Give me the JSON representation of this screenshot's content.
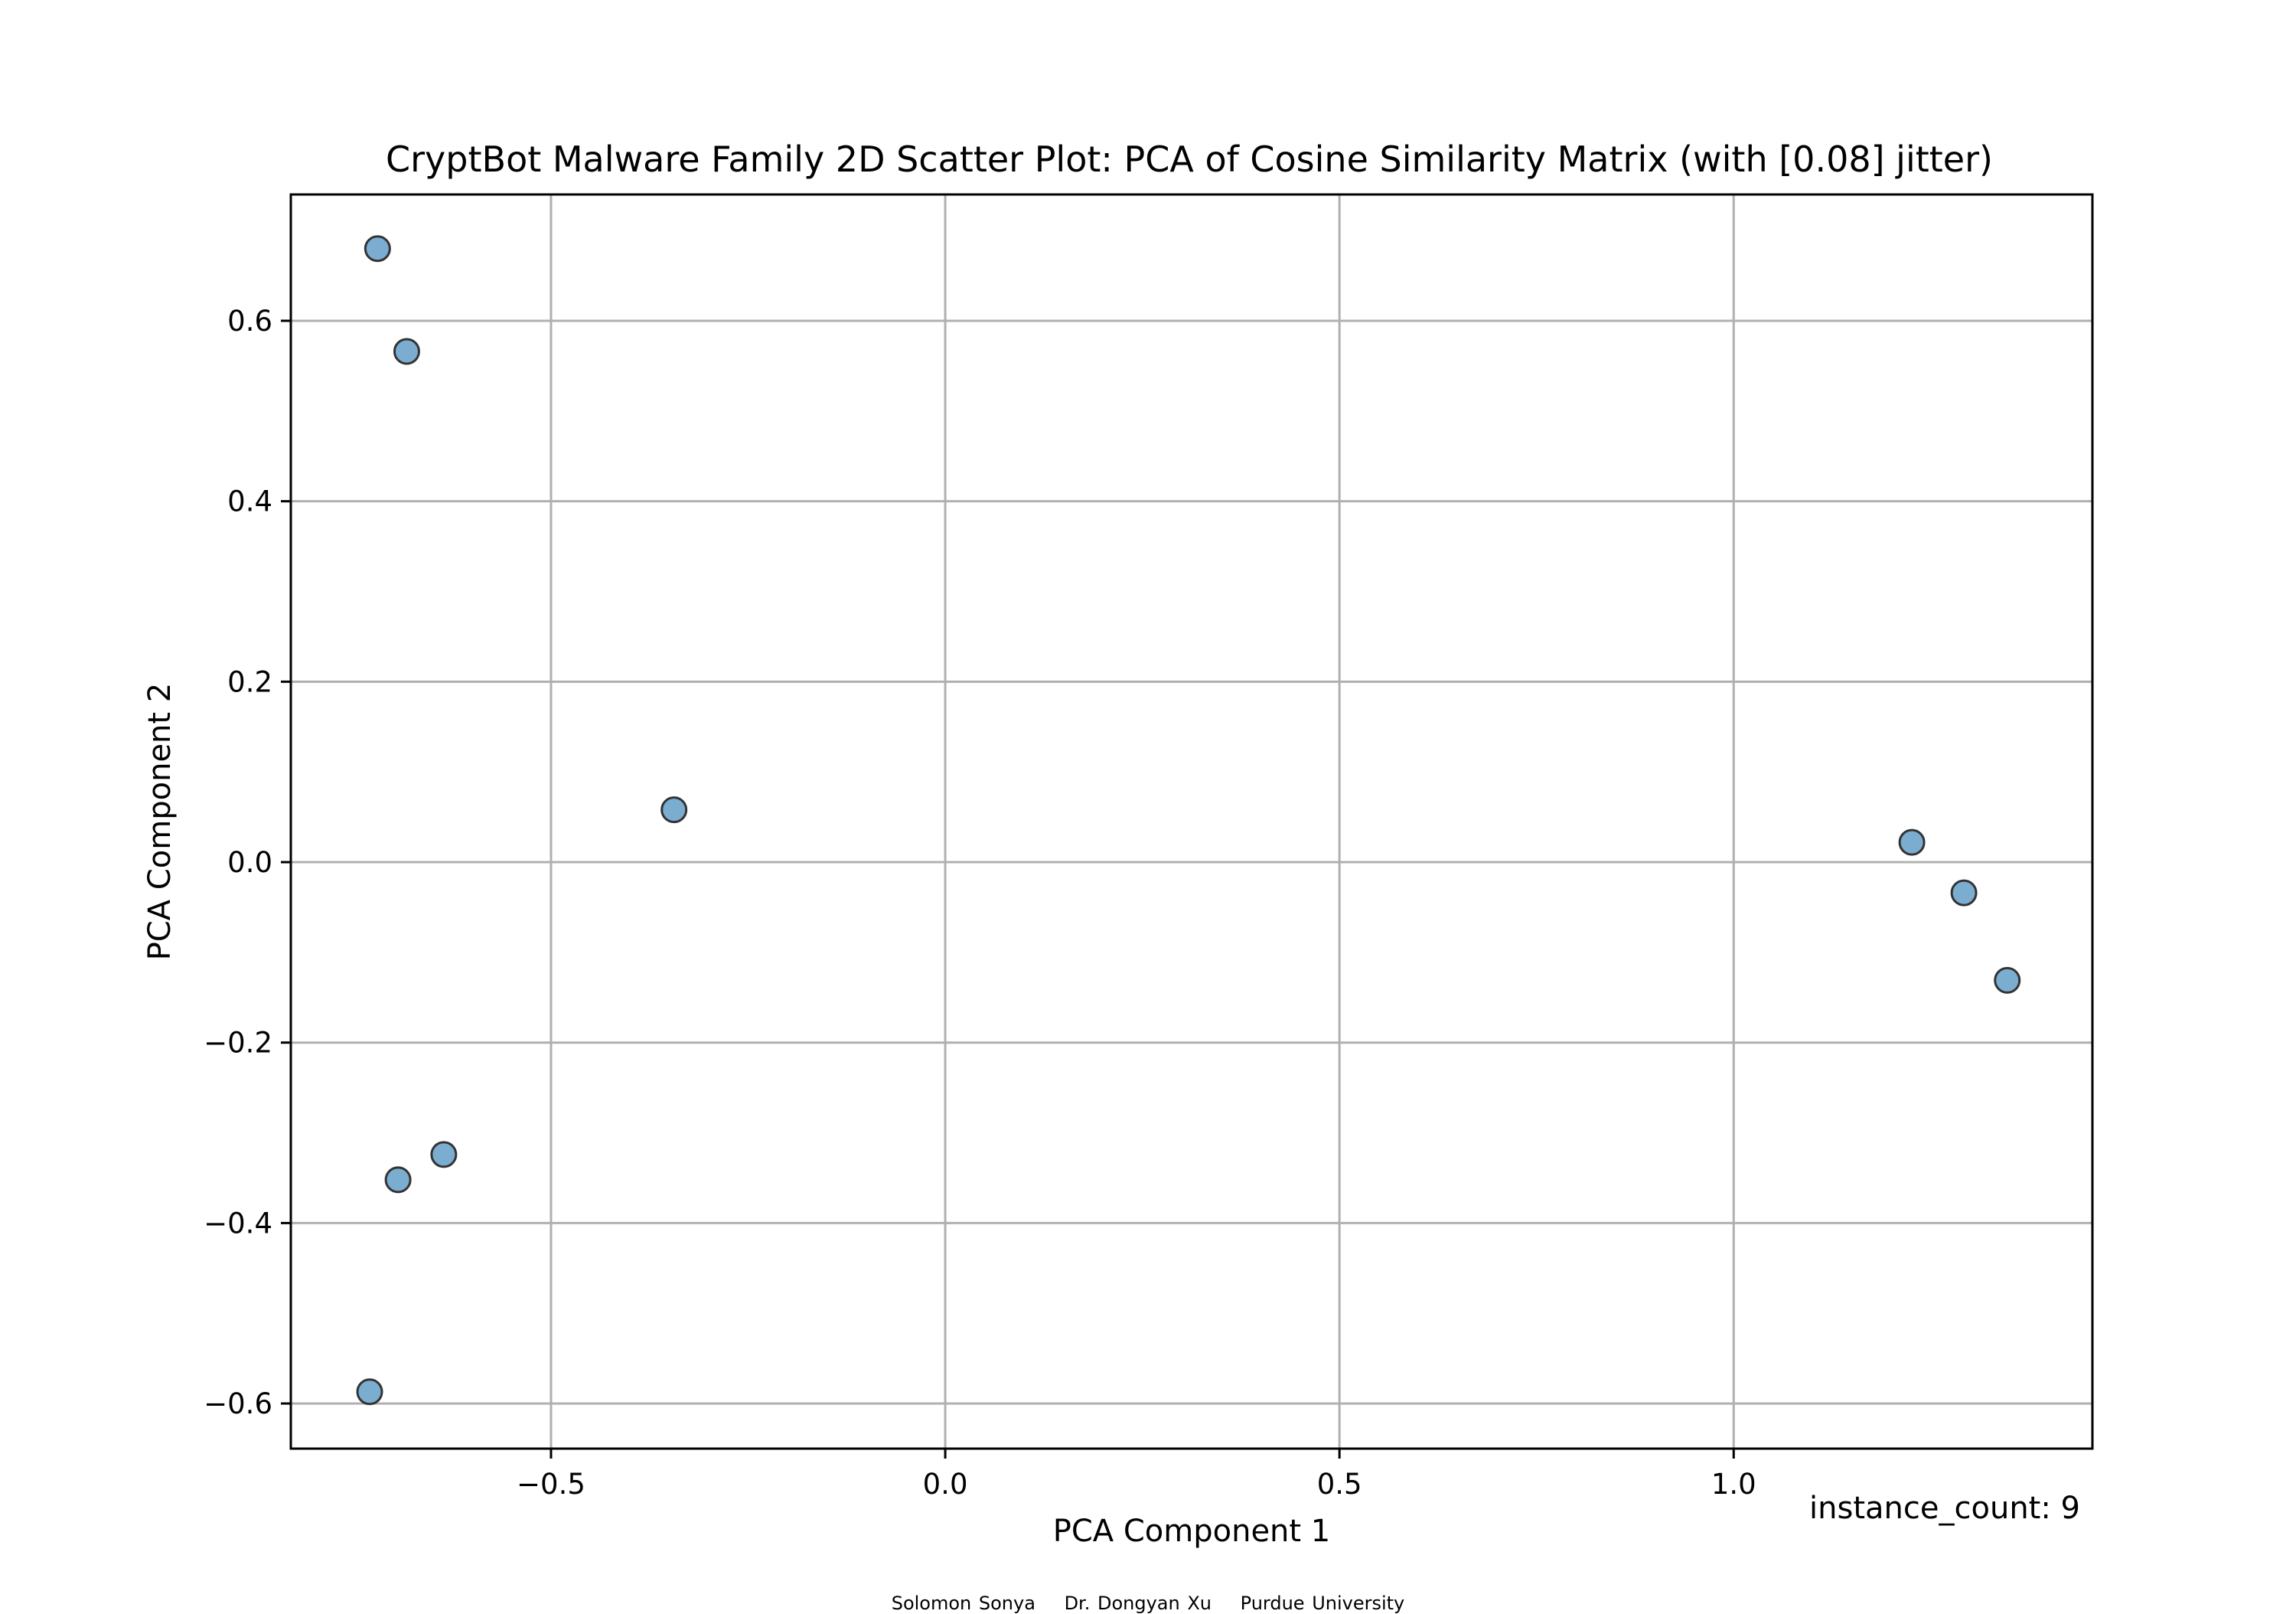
{
  "chart_data": {
    "type": "scatter",
    "title": "CryptBot Malware Family 2D Scatter Plot: PCA of Cosine Similarity Matrix (with [0.08] jitter)",
    "xlabel": "PCA Component 1",
    "ylabel": "PCA Component 2",
    "xlim": [
      -0.83,
      1.455
    ],
    "ylim": [
      -0.65,
      0.74
    ],
    "xticks": [
      -0.5,
      0.0,
      0.5,
      1.0
    ],
    "xtick_labels": [
      "−0.5",
      "0.0",
      "0.5",
      "1.0"
    ],
    "yticks": [
      -0.6,
      -0.4,
      -0.2,
      0.0,
      0.2,
      0.4,
      0.6
    ],
    "ytick_labels": [
      "−0.6",
      "−0.4",
      "−0.2",
      "0.0",
      "0.2",
      "0.4",
      "0.6"
    ],
    "grid": true,
    "marker_color": "#74a9cf",
    "marker_edge_color": "#333333",
    "points": [
      {
        "x": -0.72,
        "y": 0.68
      },
      {
        "x": -0.683,
        "y": 0.566
      },
      {
        "x": -0.344,
        "y": 0.058
      },
      {
        "x": -0.636,
        "y": -0.324
      },
      {
        "x": -0.694,
        "y": -0.352
      },
      {
        "x": -0.73,
        "y": -0.587
      },
      {
        "x": 1.226,
        "y": 0.022
      },
      {
        "x": 1.292,
        "y": -0.034
      },
      {
        "x": 1.347,
        "y": -0.131
      }
    ]
  },
  "annotation": "instance_count: 9",
  "footer": {
    "author": "Solomon Sonya",
    "advisor": "Dr. Dongyan Xu",
    "institution": "Purdue University"
  }
}
